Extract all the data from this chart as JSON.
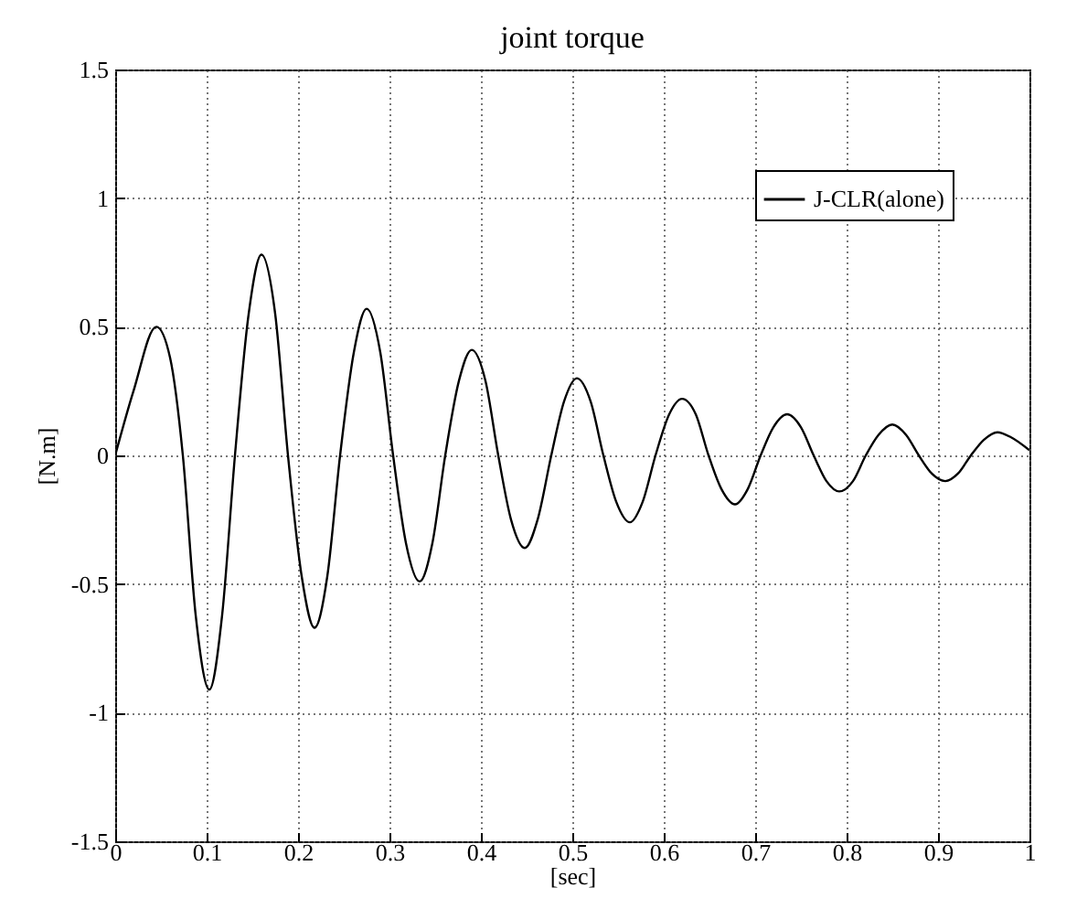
{
  "chart_data": {
    "type": "line",
    "title": "joint torque",
    "xlabel": "[sec]",
    "ylabel": "[N.m]",
    "x": [
      0,
      0.02,
      0.045,
      0.06,
      0.074,
      0.088,
      0.103,
      0.117,
      0.131,
      0.146,
      0.16,
      0.175,
      0.189,
      0.204,
      0.218,
      0.232,
      0.246,
      0.261,
      0.275,
      0.29,
      0.304,
      0.318,
      0.333,
      0.347,
      0.361,
      0.376,
      0.39,
      0.405,
      0.419,
      0.433,
      0.448,
      0.462,
      0.477,
      0.491,
      0.505,
      0.52,
      0.534,
      0.548,
      0.563,
      0.577,
      0.591,
      0.606,
      0.62,
      0.635,
      0.649,
      0.663,
      0.678,
      0.692,
      0.706,
      0.72,
      0.735,
      0.75,
      0.764,
      0.778,
      0.792,
      0.807,
      0.821,
      0.835,
      0.85,
      0.865,
      0.879,
      0.893,
      0.908,
      0.922,
      0.936,
      0.95,
      0.965,
      0.98,
      1.0
    ],
    "series": [
      {
        "name": "J-CLR(alone)",
        "color": "#000000",
        "values": [
          0,
          0.25,
          0.5,
          0.38,
          0,
          -0.62,
          -0.91,
          -0.62,
          0,
          0.55,
          0.78,
          0.55,
          0,
          -0.47,
          -0.67,
          -0.47,
          0,
          0.4,
          0.57,
          0.4,
          0,
          -0.34,
          -0.49,
          -0.34,
          0,
          0.29,
          0.41,
          0.29,
          0,
          -0.25,
          -0.36,
          -0.25,
          0,
          0.21,
          0.3,
          0.21,
          0,
          -0.18,
          -0.26,
          -0.18,
          0,
          0.16,
          0.22,
          0.16,
          0,
          -0.13,
          -0.19,
          -0.13,
          0,
          0.11,
          0.16,
          0.11,
          0,
          -0.1,
          -0.14,
          -0.1,
          0,
          0.08,
          0.12,
          0.08,
          0,
          -0.07,
          -0.1,
          -0.07,
          0,
          0.06,
          0.09,
          0.07,
          0.02
        ]
      }
    ],
    "xlim": [
      0,
      1
    ],
    "ylim": [
      -1.5,
      1.5
    ],
    "xticks": [
      0,
      0.1,
      0.2,
      0.3,
      0.4,
      0.5,
      0.6,
      0.7,
      0.8,
      0.9,
      1
    ],
    "yticks": [
      -1.5,
      -1,
      -0.5,
      0,
      0.5,
      1,
      1.5
    ],
    "grid": true,
    "legend": "top right",
    "line_style": "solid"
  }
}
